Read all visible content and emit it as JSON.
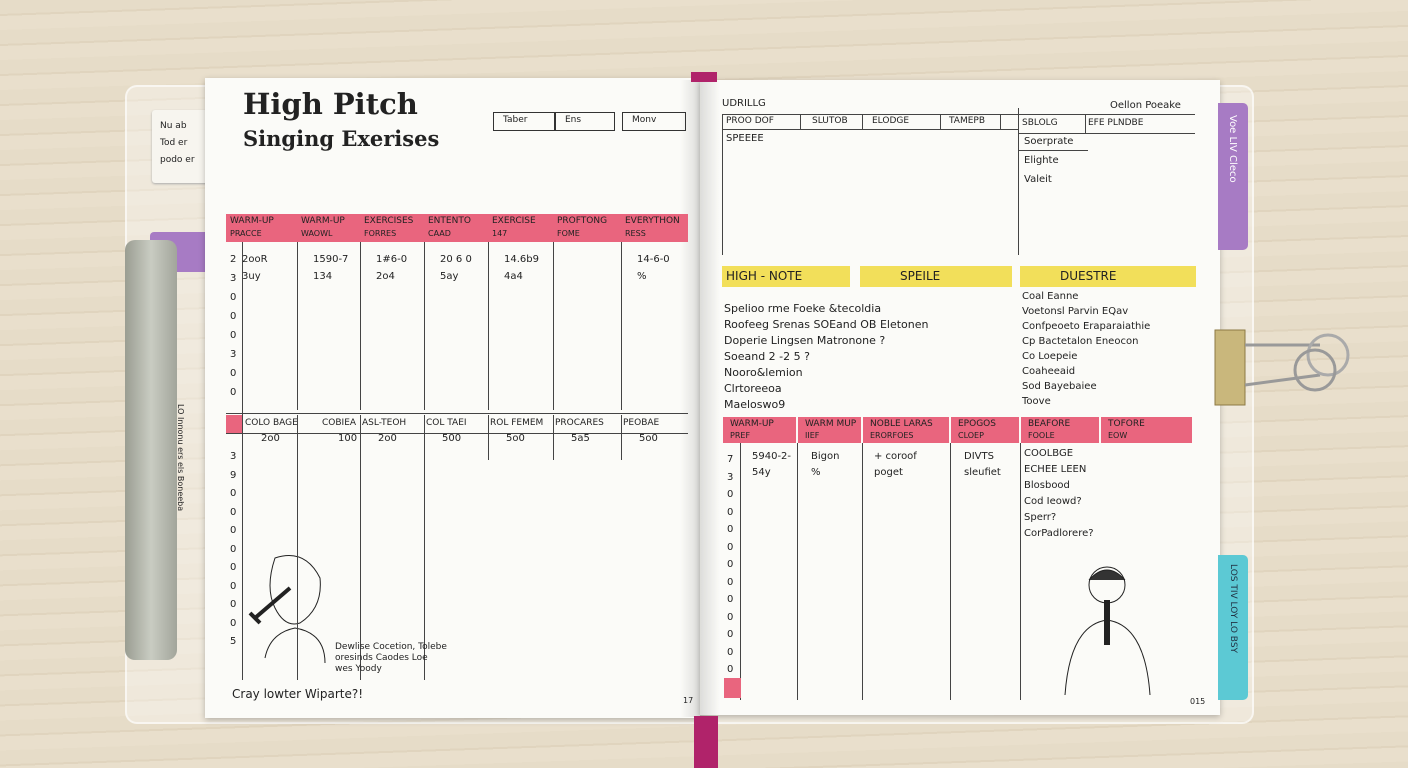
{
  "sticky_note": {
    "lines": [
      "Nu ab",
      "Tod er",
      "podo er"
    ]
  },
  "pen_label": "LO Innonu ers els Boneeba",
  "left_page": {
    "title": [
      "High Pitch",
      "Singing Exerises"
    ],
    "header_boxes": [
      "Taber",
      "Ens",
      "Monv"
    ],
    "table1": {
      "headers": [
        [
          "WARM-UP",
          "PRACCE"
        ],
        [
          "WARM-UP",
          "WAOWL"
        ],
        [
          "EXERCISES",
          "FORRES"
        ],
        [
          "ENTENTO",
          "CAAD"
        ],
        [
          "EXERCISE",
          "147"
        ],
        [
          "PROFTONG",
          "FOME"
        ],
        [
          "EVERYTHON",
          "RESS"
        ]
      ],
      "rows": [
        [
          "2ooR",
          "1590-7",
          "1#6-0",
          "20 6 0",
          "14.6b9",
          "",
          "14-6-0"
        ],
        [
          "3uy",
          "134",
          "2o4",
          "5ay",
          "4a4",
          "",
          "%"
        ]
      ],
      "row_numbers": [
        "2",
        "3",
        "0",
        "0",
        "0",
        "3",
        "0",
        "0"
      ]
    },
    "table2": {
      "headers": [
        "COLO BAGE",
        "COBIEA",
        "ASL-TEOH",
        "COL TAEI",
        "ROL FEMEM",
        "PROCARES",
        "PEOBAE"
      ],
      "values": [
        "2o0",
        "100",
        "2o0",
        "500",
        "5o0",
        "5a5",
        "5o0"
      ],
      "row_numbers": [
        "3",
        "9",
        "0",
        "0",
        "0",
        "0",
        "0",
        "0",
        "0",
        "0",
        "5"
      ]
    },
    "caption": [
      "Dewlise Cocetion, Tolebe",
      "oresinds Caodes Loe",
      "wes  Yoody"
    ],
    "footer": "Cray lowter Wiparte?!",
    "page_number": "17"
  },
  "right_page": {
    "corner_left": "UDRILLG",
    "corner_right": "Oellon Poeake",
    "top_table": {
      "headers": [
        "PROO DOF",
        "SLUTOB",
        "ELODGE",
        "TAMEPB"
      ],
      "row": "SPEEEE"
    },
    "side_box": {
      "headers": [
        "SBLOLG",
        "EFE PLNDBE"
      ],
      "lines": [
        "Soerprate",
        "Elighte",
        "Valeit"
      ]
    },
    "labels": [
      "HIGH - NOTE",
      "SPEILE",
      "DUESTRE"
    ],
    "notes_left": [
      "Spelioo rme Foeke &tecoldia",
      "Roofeeg Srenas SOEand OB Eletonen",
      "Doperie Lingsen Matronone ?",
      "Soeand 2 -2 5 ?",
      "Nooro&lemion",
      "Clrtoreeoa",
      "Maeloswo9"
    ],
    "notes_right": [
      "Coal Eanne",
      "Voetonsl Parvin EQav",
      "Confpeoeto Eraparaiathie",
      "Cp Bactetalon Eneocon",
      "Co Loepeie",
      "Coaheeaid",
      "Sod Bayebaiee",
      "Toove"
    ],
    "bottom_table": {
      "headers": [
        [
          "WARM-UP",
          "PREF"
        ],
        [
          "WARM MUP",
          "IIEF"
        ],
        [
          "NOBLE LARAS",
          "ERORFOES"
        ],
        [
          "EPOGOS",
          "CLOEP"
        ],
        [
          "BEAFORE",
          "FOOLE"
        ],
        [
          "TOFORE",
          "EOW"
        ]
      ],
      "cells": [
        [
          "5940-2-",
          "54y"
        ],
        [
          "Bigon",
          "%"
        ],
        [
          "+ coroof",
          "poget"
        ],
        [
          "DIVTS",
          "sleufiet"
        ]
      ],
      "list": [
        "COOLBGE",
        "ECHEE LEEN",
        "Blosbood",
        "Cod Ieowd?",
        "Sperr?",
        "CorPadlorere?"
      ],
      "row_numbers": [
        "7",
        "3",
        "0",
        "0",
        "0",
        "0",
        "0",
        "0",
        "0",
        "0",
        "0",
        "0",
        "0"
      ]
    },
    "page_number": "015"
  },
  "tabs": {
    "top": "Voe LIV Cleco",
    "bottom": "LOS TIV LOY LO BSY"
  }
}
